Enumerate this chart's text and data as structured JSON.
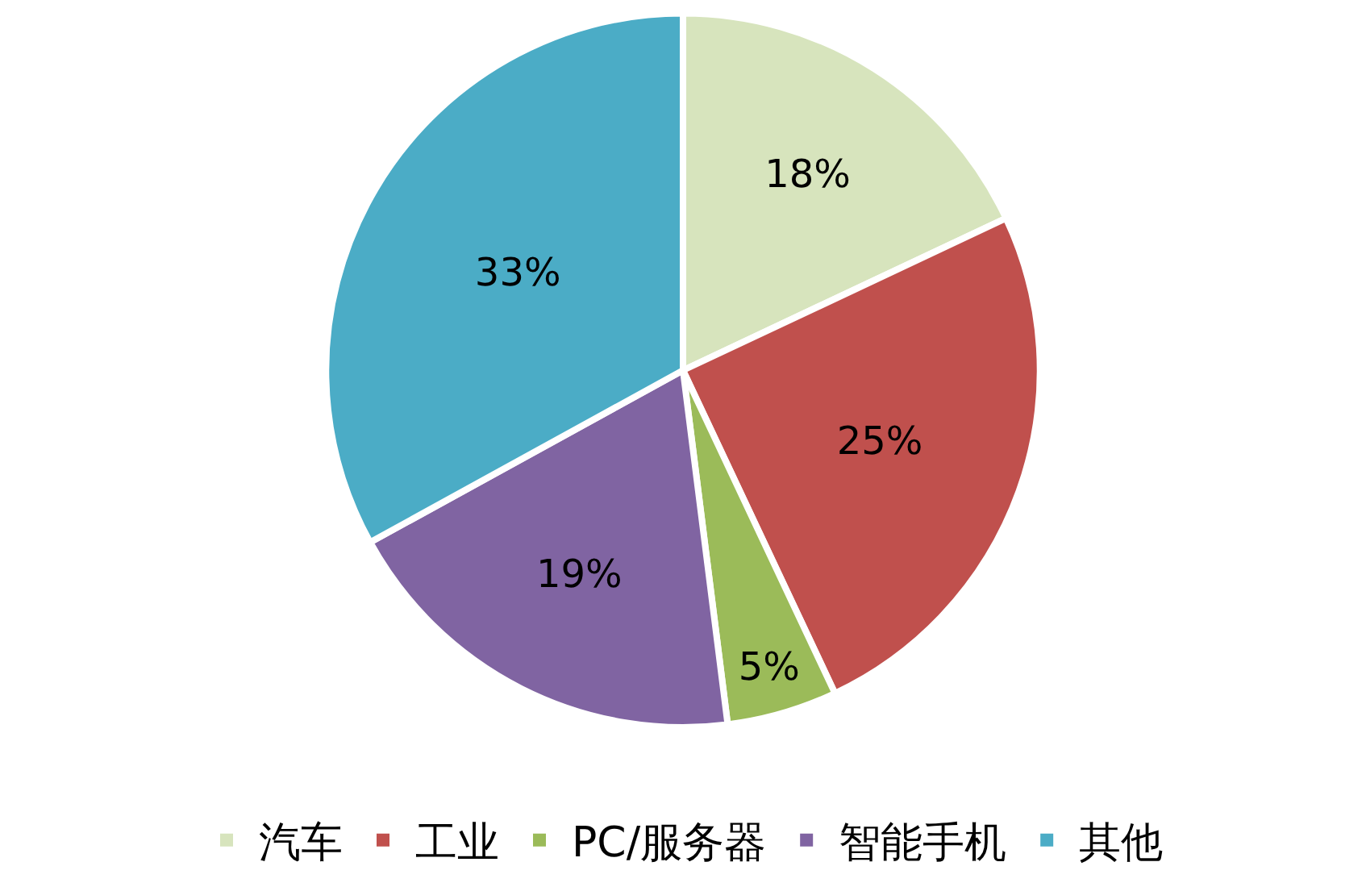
{
  "chart_data": {
    "type": "pie",
    "categories": [
      "汽车",
      "工业",
      "PC/服务器",
      "智能手机",
      "其他"
    ],
    "values": [
      18,
      25,
      5,
      19,
      33
    ],
    "value_labels": [
      "18%",
      "25%",
      "5%",
      "19%",
      "33%"
    ],
    "colors": [
      "#d7e4bd",
      "#c0504d",
      "#9bbb59",
      "#8064a2",
      "#4bacc6"
    ],
    "legend": "bottom"
  }
}
